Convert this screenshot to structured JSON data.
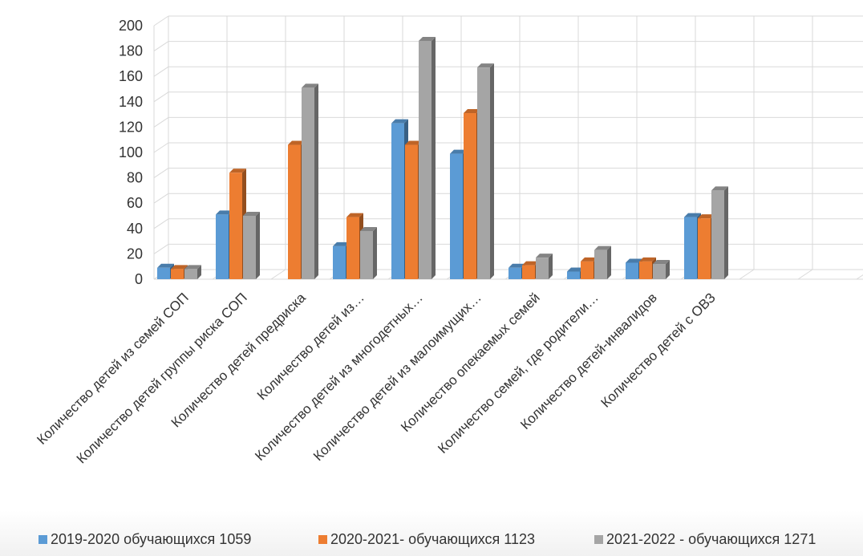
{
  "chart_data": {
    "type": "bar",
    "title": "",
    "xlabel": "",
    "ylabel": "",
    "ylim": [
      0,
      200
    ],
    "yticks": [
      0,
      20,
      40,
      60,
      80,
      100,
      120,
      140,
      160,
      180,
      200
    ],
    "grid": true,
    "legend_position": "bottom",
    "categories": [
      "Количество детей из семей СОП",
      "Количество детей группы риска СОП",
      "Количество детей предриска",
      "Количество детей из…",
      "Количество детей из многодетных…",
      "Количество детей из малоимущих…",
      "Количество опекаемых семей",
      "Количество семей, где родители…",
      "Количество детей-инвалидов",
      "Количество детей с ОВЗ",
      "",
      "",
      ""
    ],
    "series": [
      {
        "name": "2019-2020 обучающихся 1059",
        "color": "#5b9bd5",
        "values": [
          9,
          51,
          0,
          26,
          123,
          99,
          9,
          6,
          13,
          49,
          null,
          null,
          null
        ]
      },
      {
        "name": "2020-2021- обучающихся 1123",
        "color": "#ed7d31",
        "values": [
          8,
          84,
          106,
          49,
          106,
          131,
          11,
          14,
          14,
          48,
          null,
          null,
          null
        ]
      },
      {
        "name": "2021-2022 - обучающихся 1271",
        "color": "#a5a5a5",
        "values": [
          8,
          50,
          151,
          38,
          188,
          167,
          17,
          23,
          12,
          70,
          null,
          null,
          null
        ]
      }
    ]
  }
}
